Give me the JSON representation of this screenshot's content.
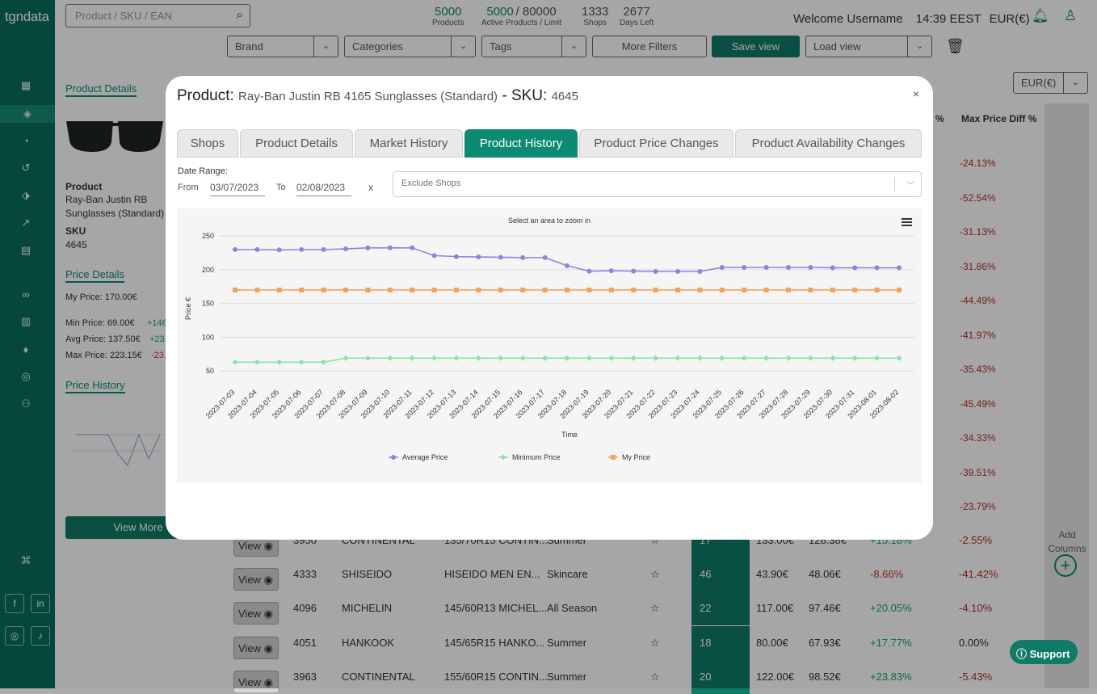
{
  "app": {
    "logo": "tgndata"
  },
  "search": {
    "placeholder": "Product / SKU / EAN"
  },
  "stats": [
    {
      "value": "5000",
      "label": "Products"
    },
    {
      "value": "5000",
      "limit": "/ 80000",
      "label": "Active Products / Limit"
    },
    {
      "value": "1333",
      "label": "Shops"
    },
    {
      "value": "2677",
      "label": "Days Left"
    }
  ],
  "header": {
    "welcome": "Welcome",
    "username": "Username",
    "time": "14:39 EEST",
    "currency": "EUR(€)"
  },
  "filters": {
    "brand": "Brand",
    "categories": "Categories",
    "tags": "Tags",
    "more_filters": "More Filters",
    "save_view": "Save view",
    "load_view": "Load view",
    "currency_select": "EUR(€)"
  },
  "left_panel": {
    "product_details_title": "Product Details",
    "product_label": "Product",
    "product_name_1": "Ray-Ban Justin RB",
    "product_name_2": "Sunglasses (Standard)",
    "sku_label": "SKU",
    "sku_value": "4645",
    "price_details_title": "Price Details",
    "my_price": "My Price:  170.00€",
    "min_price": "Min Price:  69.00€",
    "min_diff": "+146",
    "avg_price": "Avg Price:  137.50€",
    "avg_diff": "+23.",
    "max_price": "Max Price:  223.15€",
    "max_diff": "-23.",
    "price_history_title": "Price History",
    "view_more": "View More"
  },
  "table": {
    "max_diff_header": "Max Price Diff %",
    "pct_header": "%",
    "bg_diffs": [
      "-24.13%",
      "-52.54%",
      "-31.13%",
      "-31.86%",
      "-44.49%",
      "-41.97%",
      "-35.43%",
      "-45.49%",
      "-34.33%",
      "-39.51%",
      "-23.79%"
    ],
    "rows": [
      {
        "view": "View",
        "id": "3950",
        "brand": "CONTINENTAL",
        "name": "135/70R15 CONTIN...",
        "cat": "Summer",
        "count": "17",
        "price": "133.00€",
        "avg": "128.38€",
        "diff": "+15.18%",
        "max": "-2.55%"
      },
      {
        "view": "View",
        "id": "4333",
        "brand": "SHISEIDO",
        "name": "HISEIDO MEN EN...",
        "cat": "Skincare",
        "count": "46",
        "price": "43.90€",
        "avg": "48.06€",
        "diff": "-8.66%",
        "max": "-41.42%"
      },
      {
        "view": "View",
        "id": "4096",
        "brand": "MICHELIN",
        "name": "145/60R13 MICHEL...",
        "cat": "All Season",
        "count": "22",
        "price": "117.00€",
        "avg": "97.46€",
        "diff": "+20.05%",
        "max": "-4.10%"
      },
      {
        "view": "View",
        "id": "4051",
        "brand": "HANKOOK",
        "name": "145/65R15 HANKO...",
        "cat": "Summer",
        "count": "18",
        "price": "80.00€",
        "avg": "67.93€",
        "diff": "+17.77%",
        "max": "0.00%"
      },
      {
        "view": "View",
        "id": "3963",
        "brand": "CONTINENTAL",
        "name": "155/60R15 CONTIN...",
        "cat": "Summer",
        "count": "20",
        "price": "122.00€",
        "avg": "98.52€",
        "diff": "+23.83%",
        "max": "-5.43%"
      }
    ],
    "add_columns": "Add Columns"
  },
  "modal": {
    "product_label": "Product:",
    "product_name": "Ray-Ban Justin RB 4165 Sunglasses (Standard)",
    "sku_label": "- SKU:",
    "sku_value": "4645",
    "close": "×",
    "tabs": [
      "Shops",
      "Product Details",
      "Market History",
      "Product History",
      "Product Price Changes",
      "Product Availability Changes"
    ],
    "active_tab": "Product History",
    "date_range_label": "Date Range:",
    "from_label": "From",
    "from_value": "03/07/2023",
    "to_label": "To",
    "to_value": "02/08/2023",
    "clear": "x",
    "exclude_shops_placeholder": "Exclude Shops"
  },
  "support": {
    "label": "Support"
  },
  "chart_data": {
    "type": "line",
    "subtitle": "Select an area to zoom in",
    "xlabel": "Time",
    "ylabel": "Price €",
    "ylim": [
      25,
      255
    ],
    "yticks": [
      50,
      100,
      150,
      200,
      250
    ],
    "grid": true,
    "legend_position": "bottom",
    "x": [
      "2023-07-03",
      "2023-07-04",
      "2023-07-05",
      "2023-07-06",
      "2023-07-07",
      "2023-07-08",
      "2023-07-09",
      "2023-07-10",
      "2023-07-11",
      "2023-07-12",
      "2023-07-13",
      "2023-07-14",
      "2023-07-15",
      "2023-07-16",
      "2023-07-17",
      "2023-07-18",
      "2023-07-19",
      "2023-07-20",
      "2023-07-21",
      "2023-07-22",
      "2023-07-23",
      "2023-07-24",
      "2023-07-25",
      "2023-07-26",
      "2023-07-27",
      "2023-07-28",
      "2023-07-29",
      "2023-07-30",
      "2023-07-31",
      "2023-08-01",
      "2023-08-02"
    ],
    "series": [
      {
        "name": "Average Price",
        "color": "#8a86e0",
        "marker": "circle",
        "values": [
          230,
          230,
          229.5,
          230,
          230,
          231,
          232.5,
          232.5,
          232.5,
          221,
          219.5,
          219,
          218.5,
          218,
          218,
          206,
          198,
          198.5,
          198,
          197.5,
          197.5,
          197.5,
          203.5,
          203.5,
          203.5,
          203.5,
          203.5,
          203,
          203,
          203,
          203
        ]
      },
      {
        "name": "Minimum Price",
        "color": "#8fe0a4",
        "marker": "diamond",
        "values": [
          63,
          63,
          63,
          63,
          63,
          69,
          69,
          69,
          69,
          69,
          69,
          69,
          69,
          69,
          69,
          69,
          69,
          69,
          69,
          69,
          69,
          69,
          69,
          69,
          69,
          69,
          69,
          69,
          69,
          69,
          69
        ]
      },
      {
        "name": "My Price",
        "color": "#f1a35e",
        "marker": "square",
        "values": [
          170,
          170,
          170,
          170,
          170,
          170,
          170,
          170,
          170,
          170,
          170,
          170,
          170,
          170,
          170,
          170,
          170,
          170,
          170,
          170,
          170,
          170,
          170,
          170,
          170,
          170,
          170,
          170,
          170,
          170,
          170
        ]
      }
    ]
  }
}
